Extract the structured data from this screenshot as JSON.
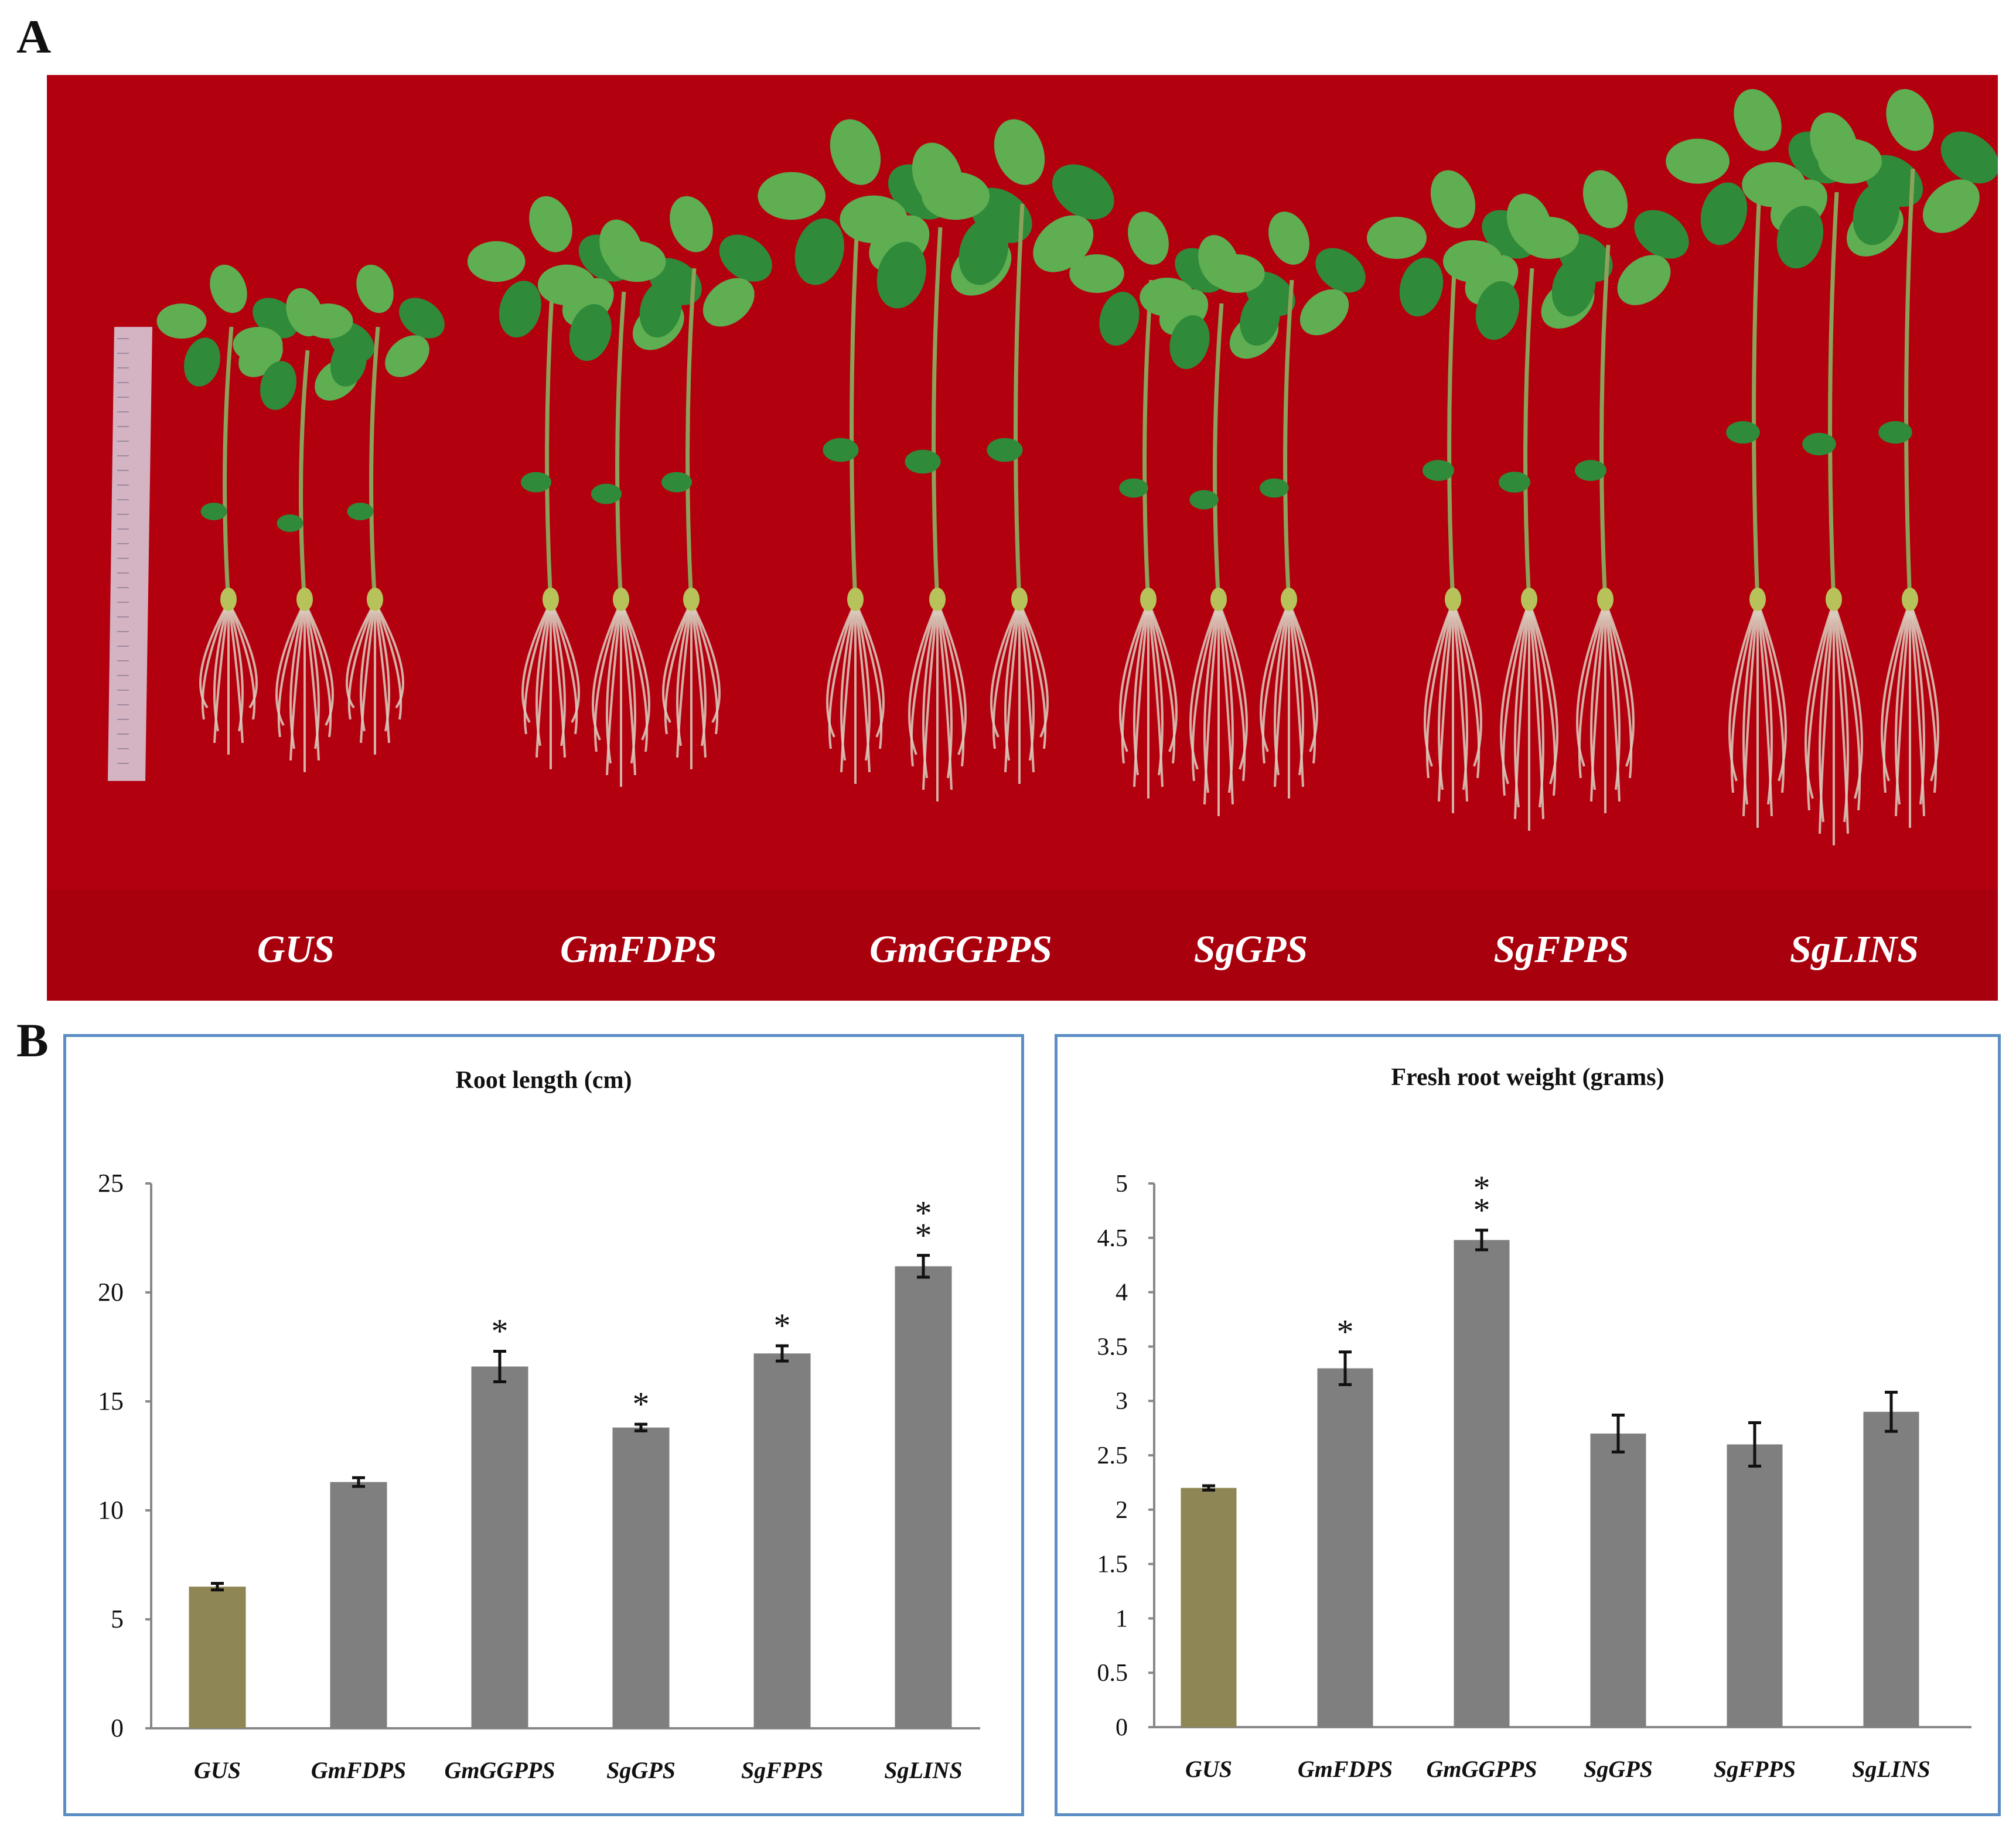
{
  "panels": {
    "a_label": "A",
    "b_label": "B"
  },
  "photo": {
    "labels": [
      "GUS",
      "GmFDPS",
      "GmGGPPS",
      "SgGPS",
      "SgFPPS",
      "SgLINS"
    ],
    "colors": {
      "background": "#b3000f",
      "leaf": "#2f8a3a",
      "leaf_light": "#5fae52",
      "stem": "#8ca25a",
      "root": "#d9cfbf",
      "ruler": "#d7c8d6"
    }
  },
  "chart_data": [
    {
      "type": "bar",
      "title": "Root length (cm)",
      "categories": [
        "GUS",
        "GmFDPS",
        "GmGGPPS",
        "SgGPS",
        "SgFPPS",
        "SgLINS"
      ],
      "values": [
        6.5,
        11.3,
        16.6,
        13.8,
        17.2,
        21.2
      ],
      "errors": [
        0.15,
        0.2,
        0.7,
        0.15,
        0.35,
        0.5
      ],
      "significance": [
        "",
        "",
        "*",
        "*",
        "*",
        "**"
      ],
      "ylim": [
        0,
        25
      ],
      "yticks": [
        0,
        5,
        10,
        15,
        20,
        25
      ],
      "xlabel": "",
      "ylabel": "",
      "colors": {
        "control": "#8f8655",
        "treatment": "#7f7f7f"
      }
    },
    {
      "type": "bar",
      "title": "Fresh root weight (grams)",
      "categories": [
        "GUS",
        "GmFDPS",
        "GmGGPPS",
        "SgGPS",
        "SgFPPS",
        "SgLINS"
      ],
      "values": [
        2.2,
        3.3,
        4.48,
        2.7,
        2.6,
        2.9
      ],
      "errors": [
        0.02,
        0.15,
        0.09,
        0.17,
        0.2,
        0.18
      ],
      "significance": [
        "",
        "*",
        "**",
        "",
        "",
        ""
      ],
      "ylim": [
        0,
        5
      ],
      "yticks": [
        0,
        0.5,
        1,
        1.5,
        2,
        2.5,
        3,
        3.5,
        4,
        4.5,
        5
      ],
      "xlabel": "",
      "ylabel": "",
      "colors": {
        "control": "#8f8655",
        "treatment": "#7f7f7f"
      }
    }
  ]
}
